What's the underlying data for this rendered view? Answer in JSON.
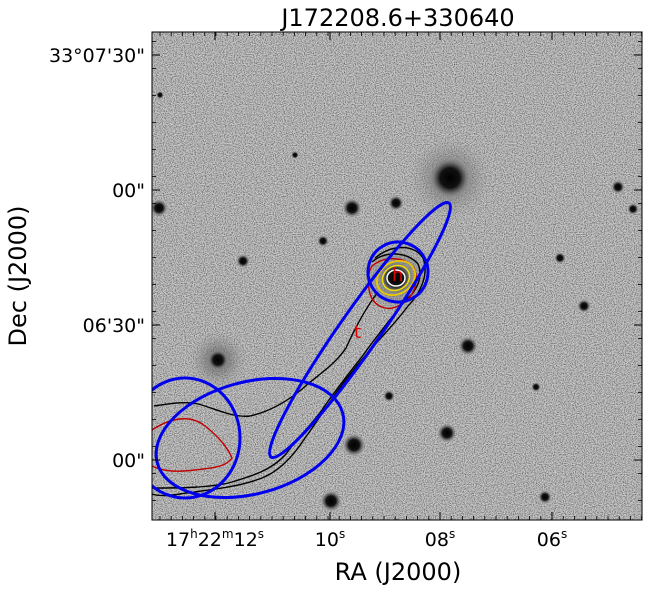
{
  "title": "J172208.6+330640",
  "axes": {
    "xlabel": "RA (J2000)",
    "ylabel": "Dec (J2000)",
    "ra_ticks": [
      {
        "h": "17",
        "m": "22",
        "s": "12"
      },
      {
        "s": "10"
      },
      {
        "s": "08"
      },
      {
        "s": "06"
      }
    ],
    "dec_ticks": [
      "33°07'30\"",
      "00\"",
      "06'30\"",
      "00\""
    ]
  },
  "components": [
    {
      "label": "h"
    },
    {
      "label": "t"
    }
  ],
  "colors": {
    "beam": "#0000ee",
    "contour_black": "#000000",
    "contour_red": "#c00000",
    "contour_yellow": "#e8c800",
    "component_label": "#e00000"
  }
}
